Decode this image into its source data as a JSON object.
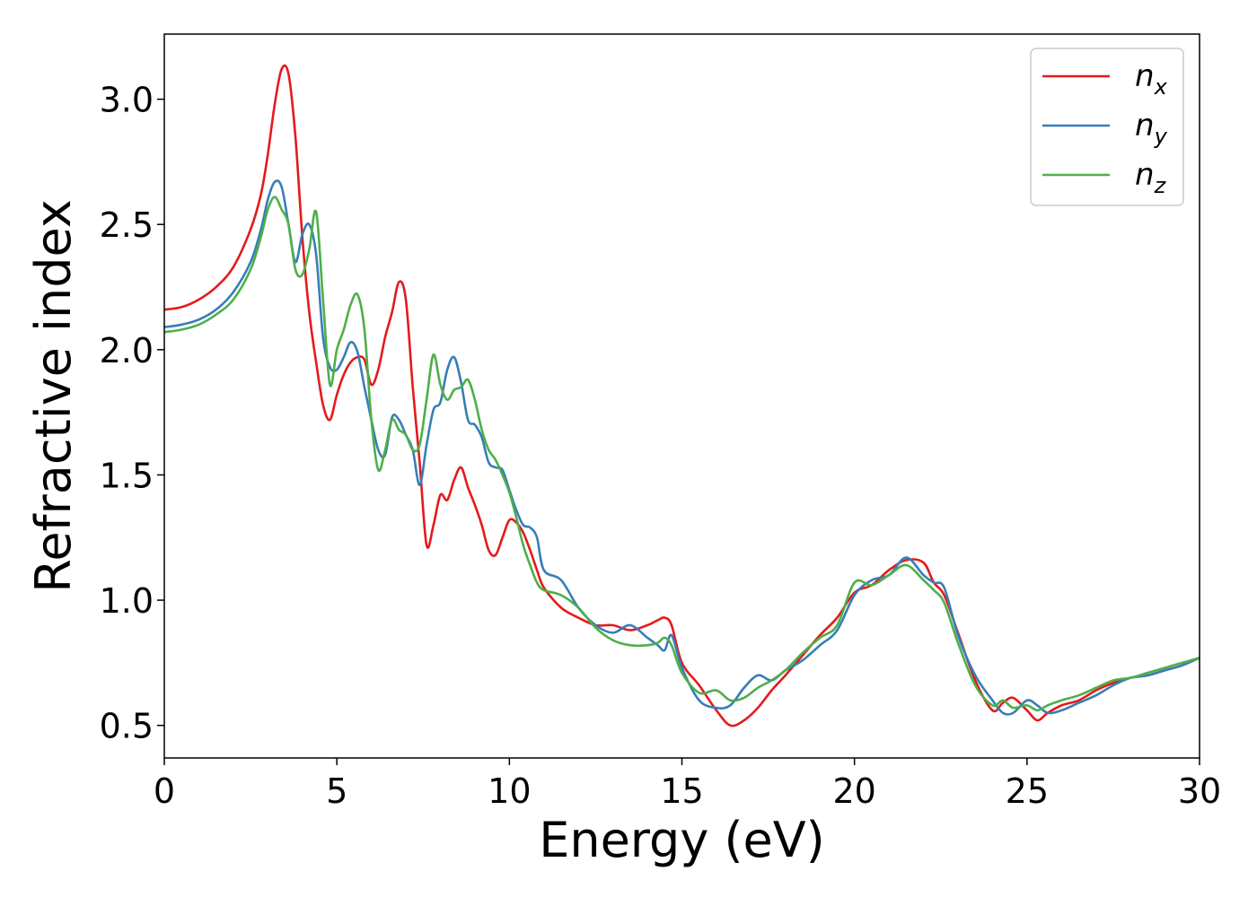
{
  "chart_data": {
    "type": "line",
    "title": "",
    "xlabel": "Energy (eV)",
    "ylabel": "Refractive index",
    "xlim": [
      0,
      30
    ],
    "ylim": [
      0.37,
      3.26
    ],
    "xticks": [
      0,
      5,
      10,
      15,
      20,
      25,
      30
    ],
    "xtick_labels": [
      "0",
      "5",
      "10",
      "15",
      "20",
      "25",
      "30"
    ],
    "yticks": [
      0.5,
      1.0,
      1.5,
      2.0,
      2.5,
      3.0
    ],
    "ytick_labels": [
      "0.5",
      "1.0",
      "1.5",
      "2.0",
      "2.5",
      "3.0"
    ],
    "grid": false,
    "legend_position": "top-right",
    "series": [
      {
        "name": "n_x",
        "legend_base": "n",
        "legend_sub": "x",
        "color": "#e41a1c",
        "x": [
          0,
          0.5,
          1,
          1.5,
          2,
          2.5,
          2.8,
          3.0,
          3.2,
          3.4,
          3.6,
          3.8,
          4.0,
          4.2,
          4.4,
          4.6,
          4.8,
          5.0,
          5.2,
          5.4,
          5.6,
          5.8,
          6.0,
          6.2,
          6.4,
          6.6,
          6.8,
          7.0,
          7.2,
          7.4,
          7.6,
          7.8,
          8.0,
          8.2,
          8.4,
          8.6,
          8.8,
          9.0,
          9.2,
          9.4,
          9.6,
          9.8,
          10.0,
          10.2,
          10.4,
          10.6,
          10.8,
          11.0,
          11.5,
          12.0,
          12.5,
          13.0,
          13.5,
          14.0,
          14.3,
          14.5,
          14.7,
          15.0,
          15.5,
          16.0,
          16.4,
          16.8,
          17.2,
          17.6,
          18.0,
          18.5,
          19.0,
          19.5,
          20.0,
          20.5,
          21.0,
          21.5,
          22.0,
          22.3,
          22.6,
          23.0,
          23.5,
          24.0,
          24.3,
          24.6,
          25.0,
          25.3,
          25.6,
          26.0,
          26.5,
          27.0,
          27.5,
          28.0,
          28.5,
          29.0,
          29.5,
          30.0
        ],
        "y": [
          2.16,
          2.17,
          2.2,
          2.25,
          2.33,
          2.48,
          2.62,
          2.78,
          2.98,
          3.12,
          3.1,
          2.85,
          2.45,
          2.15,
          1.95,
          1.78,
          1.72,
          1.82,
          1.9,
          1.95,
          1.97,
          1.96,
          1.86,
          1.92,
          2.05,
          2.15,
          2.27,
          2.2,
          1.85,
          1.55,
          1.22,
          1.3,
          1.42,
          1.4,
          1.48,
          1.53,
          1.45,
          1.38,
          1.3,
          1.2,
          1.18,
          1.25,
          1.32,
          1.31,
          1.27,
          1.2,
          1.12,
          1.05,
          0.97,
          0.93,
          0.9,
          0.9,
          0.88,
          0.9,
          0.92,
          0.93,
          0.9,
          0.75,
          0.66,
          0.56,
          0.5,
          0.52,
          0.57,
          0.64,
          0.7,
          0.78,
          0.86,
          0.93,
          1.03,
          1.06,
          1.12,
          1.16,
          1.15,
          1.07,
          1.02,
          0.87,
          0.68,
          0.56,
          0.59,
          0.61,
          0.56,
          0.52,
          0.55,
          0.58,
          0.6,
          0.64,
          0.67,
          0.69,
          0.7,
          0.72,
          0.74,
          0.77
        ]
      },
      {
        "name": "n_y",
        "legend_base": "n",
        "legend_sub": "y",
        "color": "#377eb8",
        "x": [
          0,
          0.5,
          1,
          1.5,
          2,
          2.5,
          2.8,
          3.0,
          3.2,
          3.4,
          3.6,
          3.8,
          4.0,
          4.2,
          4.4,
          4.6,
          4.8,
          5.0,
          5.2,
          5.4,
          5.6,
          5.8,
          6.0,
          6.2,
          6.4,
          6.6,
          6.8,
          7.0,
          7.2,
          7.4,
          7.6,
          7.8,
          8.0,
          8.2,
          8.4,
          8.6,
          8.8,
          9.0,
          9.2,
          9.4,
          9.6,
          9.8,
          10.0,
          10.2,
          10.4,
          10.6,
          10.8,
          11.0,
          11.5,
          12.0,
          12.5,
          13.0,
          13.5,
          14.0,
          14.3,
          14.5,
          14.7,
          15.0,
          15.5,
          16.0,
          16.4,
          16.8,
          17.2,
          17.6,
          18.0,
          18.5,
          19.0,
          19.5,
          20.0,
          20.5,
          21.0,
          21.5,
          22.0,
          22.3,
          22.6,
          23.0,
          23.5,
          24.0,
          24.3,
          24.6,
          25.0,
          25.3,
          25.6,
          26.0,
          26.5,
          27.0,
          27.5,
          28.0,
          28.5,
          29.0,
          29.5,
          30.0
        ],
        "y": [
          2.09,
          2.1,
          2.12,
          2.16,
          2.23,
          2.35,
          2.48,
          2.6,
          2.67,
          2.65,
          2.5,
          2.35,
          2.46,
          2.5,
          2.38,
          2.05,
          1.93,
          1.92,
          1.97,
          2.03,
          1.99,
          1.85,
          1.72,
          1.6,
          1.58,
          1.73,
          1.72,
          1.66,
          1.6,
          1.46,
          1.62,
          1.76,
          1.79,
          1.92,
          1.97,
          1.87,
          1.72,
          1.7,
          1.65,
          1.55,
          1.53,
          1.52,
          1.44,
          1.36,
          1.3,
          1.29,
          1.25,
          1.12,
          1.08,
          0.97,
          0.9,
          0.87,
          0.9,
          0.85,
          0.82,
          0.8,
          0.86,
          0.73,
          0.6,
          0.57,
          0.58,
          0.65,
          0.7,
          0.68,
          0.72,
          0.76,
          0.82,
          0.88,
          1.02,
          1.08,
          1.1,
          1.17,
          1.1,
          1.07,
          1.05,
          0.86,
          0.7,
          0.6,
          0.55,
          0.55,
          0.6,
          0.58,
          0.55,
          0.56,
          0.59,
          0.62,
          0.66,
          0.69,
          0.7,
          0.72,
          0.74,
          0.77
        ]
      },
      {
        "name": "n_z",
        "legend_base": "n",
        "legend_sub": "z",
        "color": "#4daf4a",
        "x": [
          0,
          0.5,
          1,
          1.5,
          2,
          2.5,
          2.8,
          3.0,
          3.2,
          3.4,
          3.6,
          3.8,
          4.0,
          4.2,
          4.4,
          4.6,
          4.8,
          5.0,
          5.2,
          5.4,
          5.6,
          5.8,
          6.0,
          6.2,
          6.4,
          6.6,
          6.8,
          7.0,
          7.2,
          7.4,
          7.6,
          7.8,
          8.0,
          8.2,
          8.4,
          8.6,
          8.8,
          9.0,
          9.2,
          9.4,
          9.6,
          9.8,
          10.0,
          10.2,
          10.4,
          10.6,
          10.8,
          11.0,
          11.5,
          12.0,
          12.5,
          13.0,
          13.5,
          14.0,
          14.3,
          14.5,
          14.7,
          15.0,
          15.5,
          16.0,
          16.4,
          16.8,
          17.2,
          17.6,
          18.0,
          18.5,
          19.0,
          19.5,
          20.0,
          20.5,
          21.0,
          21.5,
          22.0,
          22.3,
          22.6,
          23.0,
          23.5,
          24.0,
          24.3,
          24.6,
          25.0,
          25.3,
          25.6,
          26.0,
          26.5,
          27.0,
          27.5,
          28.0,
          28.5,
          29.0,
          29.5,
          30.0
        ],
        "y": [
          2.07,
          2.08,
          2.1,
          2.14,
          2.2,
          2.32,
          2.45,
          2.56,
          2.61,
          2.56,
          2.5,
          2.32,
          2.3,
          2.4,
          2.55,
          2.2,
          1.86,
          2.0,
          2.08,
          2.18,
          2.22,
          2.08,
          1.72,
          1.52,
          1.6,
          1.72,
          1.68,
          1.66,
          1.6,
          1.62,
          1.8,
          1.98,
          1.86,
          1.8,
          1.84,
          1.85,
          1.88,
          1.8,
          1.68,
          1.6,
          1.56,
          1.5,
          1.43,
          1.33,
          1.22,
          1.14,
          1.07,
          1.04,
          1.02,
          0.97,
          0.89,
          0.84,
          0.82,
          0.82,
          0.83,
          0.85,
          0.82,
          0.71,
          0.63,
          0.64,
          0.6,
          0.61,
          0.65,
          0.68,
          0.72,
          0.79,
          0.85,
          0.9,
          1.07,
          1.06,
          1.1,
          1.14,
          1.08,
          1.04,
          0.99,
          0.83,
          0.66,
          0.58,
          0.6,
          0.57,
          0.58,
          0.56,
          0.58,
          0.6,
          0.62,
          0.65,
          0.68,
          0.69,
          0.71,
          0.73,
          0.75,
          0.77
        ]
      }
    ]
  }
}
